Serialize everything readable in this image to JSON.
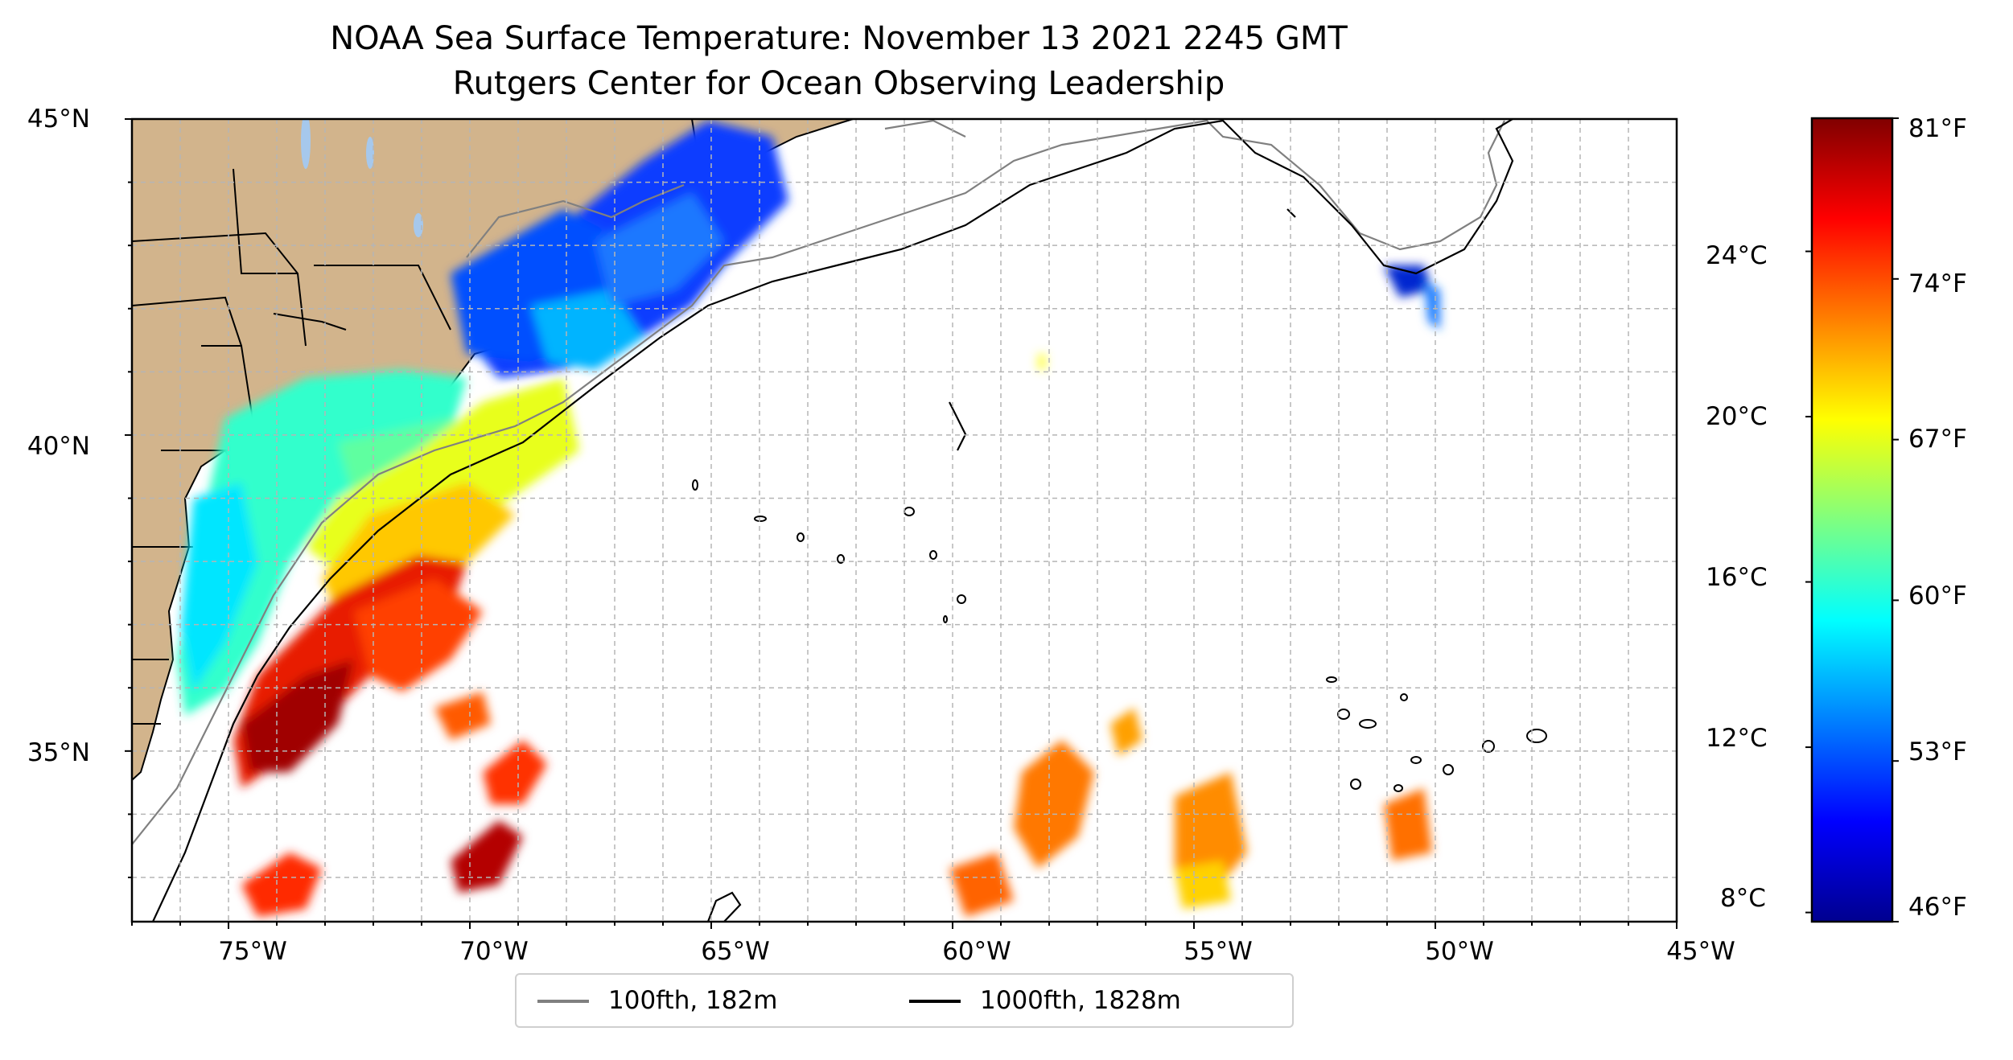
{
  "title": "NOAA Sea Surface Temperature: November 13 2021 2245 GMT",
  "subtitle": "Rutgers Center for Ocean Observing Leadership",
  "map": {
    "lon_range": [
      -77,
      -45
    ],
    "lat_range": [
      32.3,
      45
    ],
    "grid": "dashed",
    "lat_ticks": [
      "45°N",
      "40°N",
      "35°N"
    ],
    "lon_ticks": [
      "75°W",
      "70°W",
      "65°W",
      "60°W",
      "55°W",
      "50°W",
      "45°W"
    ]
  },
  "colorbar": {
    "colormap": "jet",
    "celsius_ticks": [
      "24°C",
      "20°C",
      "16°C",
      "12°C",
      "8°C"
    ],
    "fahrenheit_ticks": [
      "81°F",
      "74°F",
      "67°F",
      "60°F",
      "53°F",
      "46°F"
    ],
    "min_f": 46,
    "max_f": 81
  },
  "legend": [
    {
      "label": "100fth, 182m",
      "color": "#808080"
    },
    {
      "label": "1000fth, 1828m",
      "color": "#000000"
    }
  ],
  "colors": {
    "land": "#d2b48c",
    "lakes": "#a6c8ec",
    "isobath_100": "#808080",
    "isobath_1000": "#000000"
  }
}
